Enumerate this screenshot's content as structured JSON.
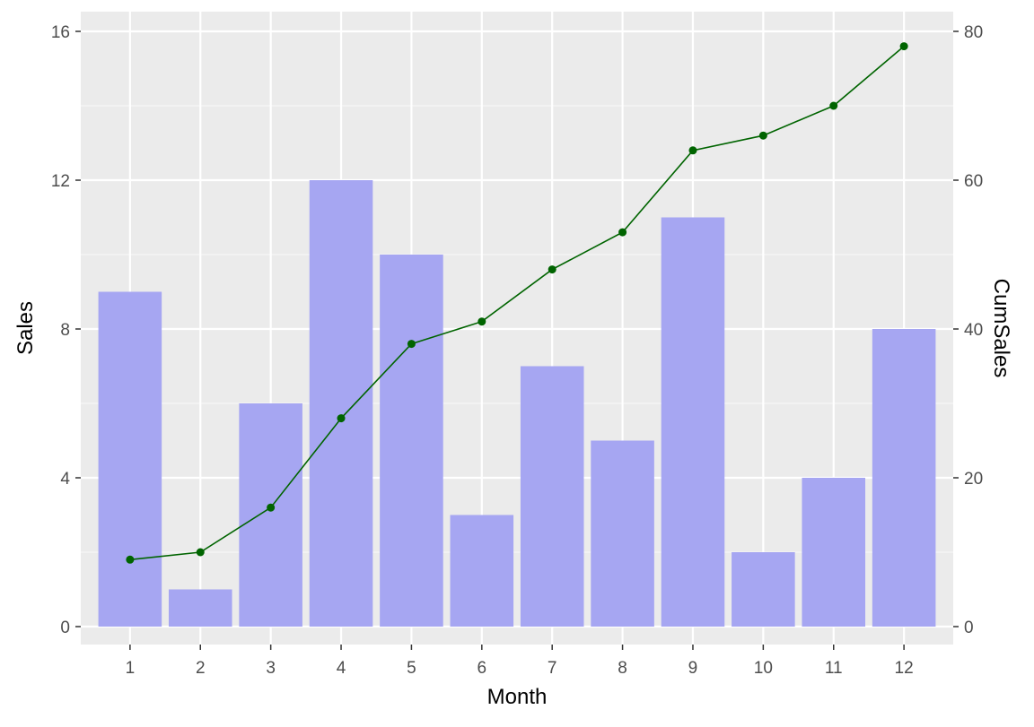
{
  "chart_data": {
    "type": "bar",
    "categories": [
      "1",
      "2",
      "3",
      "4",
      "5",
      "6",
      "7",
      "8",
      "9",
      "10",
      "11",
      "12"
    ],
    "series": [
      {
        "type": "bar",
        "axis": "left",
        "values": [
          9,
          1,
          6,
          12,
          10,
          3,
          7,
          5,
          11,
          2,
          4,
          8
        ]
      },
      {
        "type": "line",
        "axis": "right",
        "values": [
          9,
          10,
          16,
          28,
          38,
          41,
          48,
          53,
          64,
          66,
          70,
          78
        ]
      }
    ],
    "xlabel": "Month",
    "ylabel": "Sales",
    "y2label": "CumSales",
    "ylim": [
      0,
      16
    ],
    "y2lim": [
      0,
      80
    ],
    "yticks": [
      0,
      4,
      8,
      12,
      16
    ],
    "y2ticks": [
      0,
      20,
      40,
      60,
      80
    ],
    "grid": true,
    "colors": {
      "panel_background": "#ebebeb",
      "grid_major": "#ffffff",
      "grid_minor": "#f5f5f5",
      "bar_fill": "#a6a6f2",
      "line": "#006400",
      "tick_label": "#4d4d4d",
      "axis_title": "#000000"
    }
  }
}
